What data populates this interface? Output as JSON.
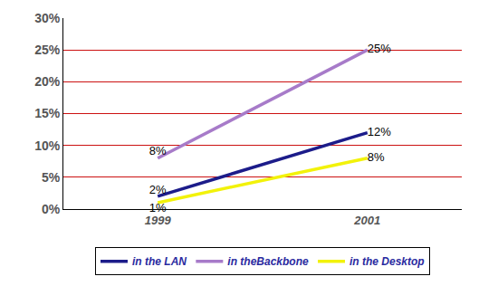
{
  "chart_data": {
    "type": "line",
    "categories": [
      "1999",
      "2001"
    ],
    "series": [
      {
        "name": "in the LAN",
        "color": "#1c1c8a",
        "values": [
          2,
          12
        ],
        "value_labels": [
          "2%",
          "12%"
        ]
      },
      {
        "name": "in theBackbone",
        "color": "#a77bc9",
        "values": [
          8,
          25
        ],
        "value_labels": [
          "8%",
          "25%"
        ]
      },
      {
        "name": "in the Desktop",
        "color": "#f2f20a",
        "values": [
          1,
          8
        ],
        "value_labels": [
          "1%",
          "8%"
        ]
      }
    ],
    "ylim": [
      0,
      30
    ],
    "yticks": [
      {
        "value": 0,
        "label": "0%"
      },
      {
        "value": 5,
        "label": "5%"
      },
      {
        "value": 10,
        "label": "10%"
      },
      {
        "value": 15,
        "label": "15%"
      },
      {
        "value": 20,
        "label": "20%"
      },
      {
        "value": 25,
        "label": "25%"
      },
      {
        "value": 30,
        "label": "30%"
      }
    ],
    "grid": true,
    "legend": "bottom",
    "data_labels": true
  }
}
